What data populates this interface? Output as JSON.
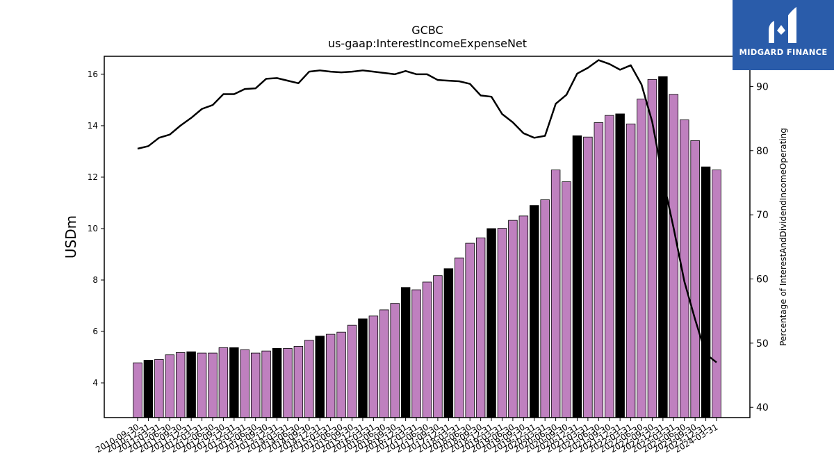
{
  "logo": {
    "text": "MIDGARD FINANCE",
    "background": "#2a5caa"
  },
  "chart_data": {
    "type": "bar",
    "title": "GCBC",
    "subtitle": "us-gaap:InterestIncomeExpenseNet",
    "ylabel": "USDm",
    "y2label": "Percentage of InterestAndDividendIncomeOperating",
    "ylim": [
      2.65,
      16.7
    ],
    "y2lim": [
      38.4,
      94.7
    ],
    "yticks": [
      4,
      6,
      8,
      10,
      12,
      14,
      16
    ],
    "y2ticks": [
      40,
      50,
      60,
      70,
      80,
      90
    ],
    "bar_color": "#bf80bf",
    "highlight_color": "#000000",
    "line_color": "#000000",
    "categories": [
      "2010-09-30",
      "2010-12-31",
      "2011-03-31",
      "2011-06-30",
      "2011-09-30",
      "2011-12-31",
      "2012-03-31",
      "2012-06-30",
      "2012-09-30",
      "2012-12-31",
      "2013-03-31",
      "2013-06-30",
      "2013-09-30",
      "2013-12-31",
      "2014-03-31",
      "2014-06-30",
      "2014-09-30",
      "2014-12-31",
      "2015-03-31",
      "2015-06-30",
      "2015-09-30",
      "2015-12-31",
      "2016-03-31",
      "2016-06-30",
      "2016-09-30",
      "2016-12-31",
      "2017-03-31",
      "2017-06-30",
      "2017-09-30",
      "2017-12-31",
      "2018-03-31",
      "2018-06-30",
      "2018-09-30",
      "2018-12-31",
      "2019-03-31",
      "2019-06-30",
      "2019-09-30",
      "2019-12-31",
      "2020-03-31",
      "2020-06-30",
      "2020-09-30",
      "2020-12-31",
      "2021-03-31",
      "2021-06-30",
      "2021-09-30",
      "2021-12-31",
      "2022-03-31",
      "2022-06-30",
      "2022-09-30",
      "2022-12-31",
      "2023-03-31",
      "2023-06-30",
      "2023-09-30",
      "2023-12-31",
      "2024-03-31"
    ],
    "series": [
      {
        "type": "bar",
        "values": [
          4.78,
          4.88,
          4.91,
          5.09,
          5.18,
          5.21,
          5.16,
          5.16,
          5.37,
          5.37,
          5.29,
          5.16,
          5.24,
          5.34,
          5.34,
          5.42,
          5.66,
          5.82,
          5.89,
          5.97,
          6.24,
          6.49,
          6.6,
          6.84,
          7.09,
          7.71,
          7.62,
          7.92,
          8.17,
          8.44,
          8.86,
          9.43,
          9.64,
          10.0,
          10.01,
          10.32,
          10.49,
          10.9,
          11.12,
          12.28,
          11.82,
          13.61,
          13.56,
          14.12,
          14.4,
          14.46,
          14.07,
          15.04,
          15.8,
          15.91,
          15.22,
          14.23,
          13.42,
          12.4,
          12.28
        ],
        "highlighted": [
          false,
          true,
          false,
          false,
          false,
          true,
          false,
          false,
          false,
          true,
          false,
          false,
          false,
          true,
          false,
          false,
          false,
          true,
          false,
          false,
          false,
          true,
          false,
          false,
          false,
          true,
          false,
          false,
          false,
          true,
          false,
          false,
          false,
          true,
          false,
          false,
          false,
          true,
          false,
          false,
          false,
          true,
          false,
          false,
          false,
          true,
          false,
          false,
          false,
          true,
          false,
          false,
          false,
          true,
          false
        ]
      },
      {
        "type": "line",
        "axis": "right",
        "values": [
          80.3,
          80.7,
          82.0,
          82.5,
          83.9,
          85.1,
          86.5,
          87.1,
          88.8,
          88.8,
          89.6,
          89.7,
          91.2,
          91.3,
          90.9,
          90.5,
          92.3,
          92.5,
          92.3,
          92.2,
          92.3,
          92.5,
          92.3,
          92.1,
          91.9,
          92.4,
          91.9,
          91.9,
          91.0,
          90.9,
          90.8,
          90.4,
          88.6,
          88.4,
          85.7,
          84.4,
          82.7,
          82.0,
          82.3,
          87.3,
          88.7,
          92.0,
          92.9,
          94.1,
          93.5,
          92.6,
          93.3,
          90.3,
          84.5,
          75.6,
          67.9,
          59.6,
          53.7,
          48.3,
          47.0
        ]
      }
    ]
  }
}
